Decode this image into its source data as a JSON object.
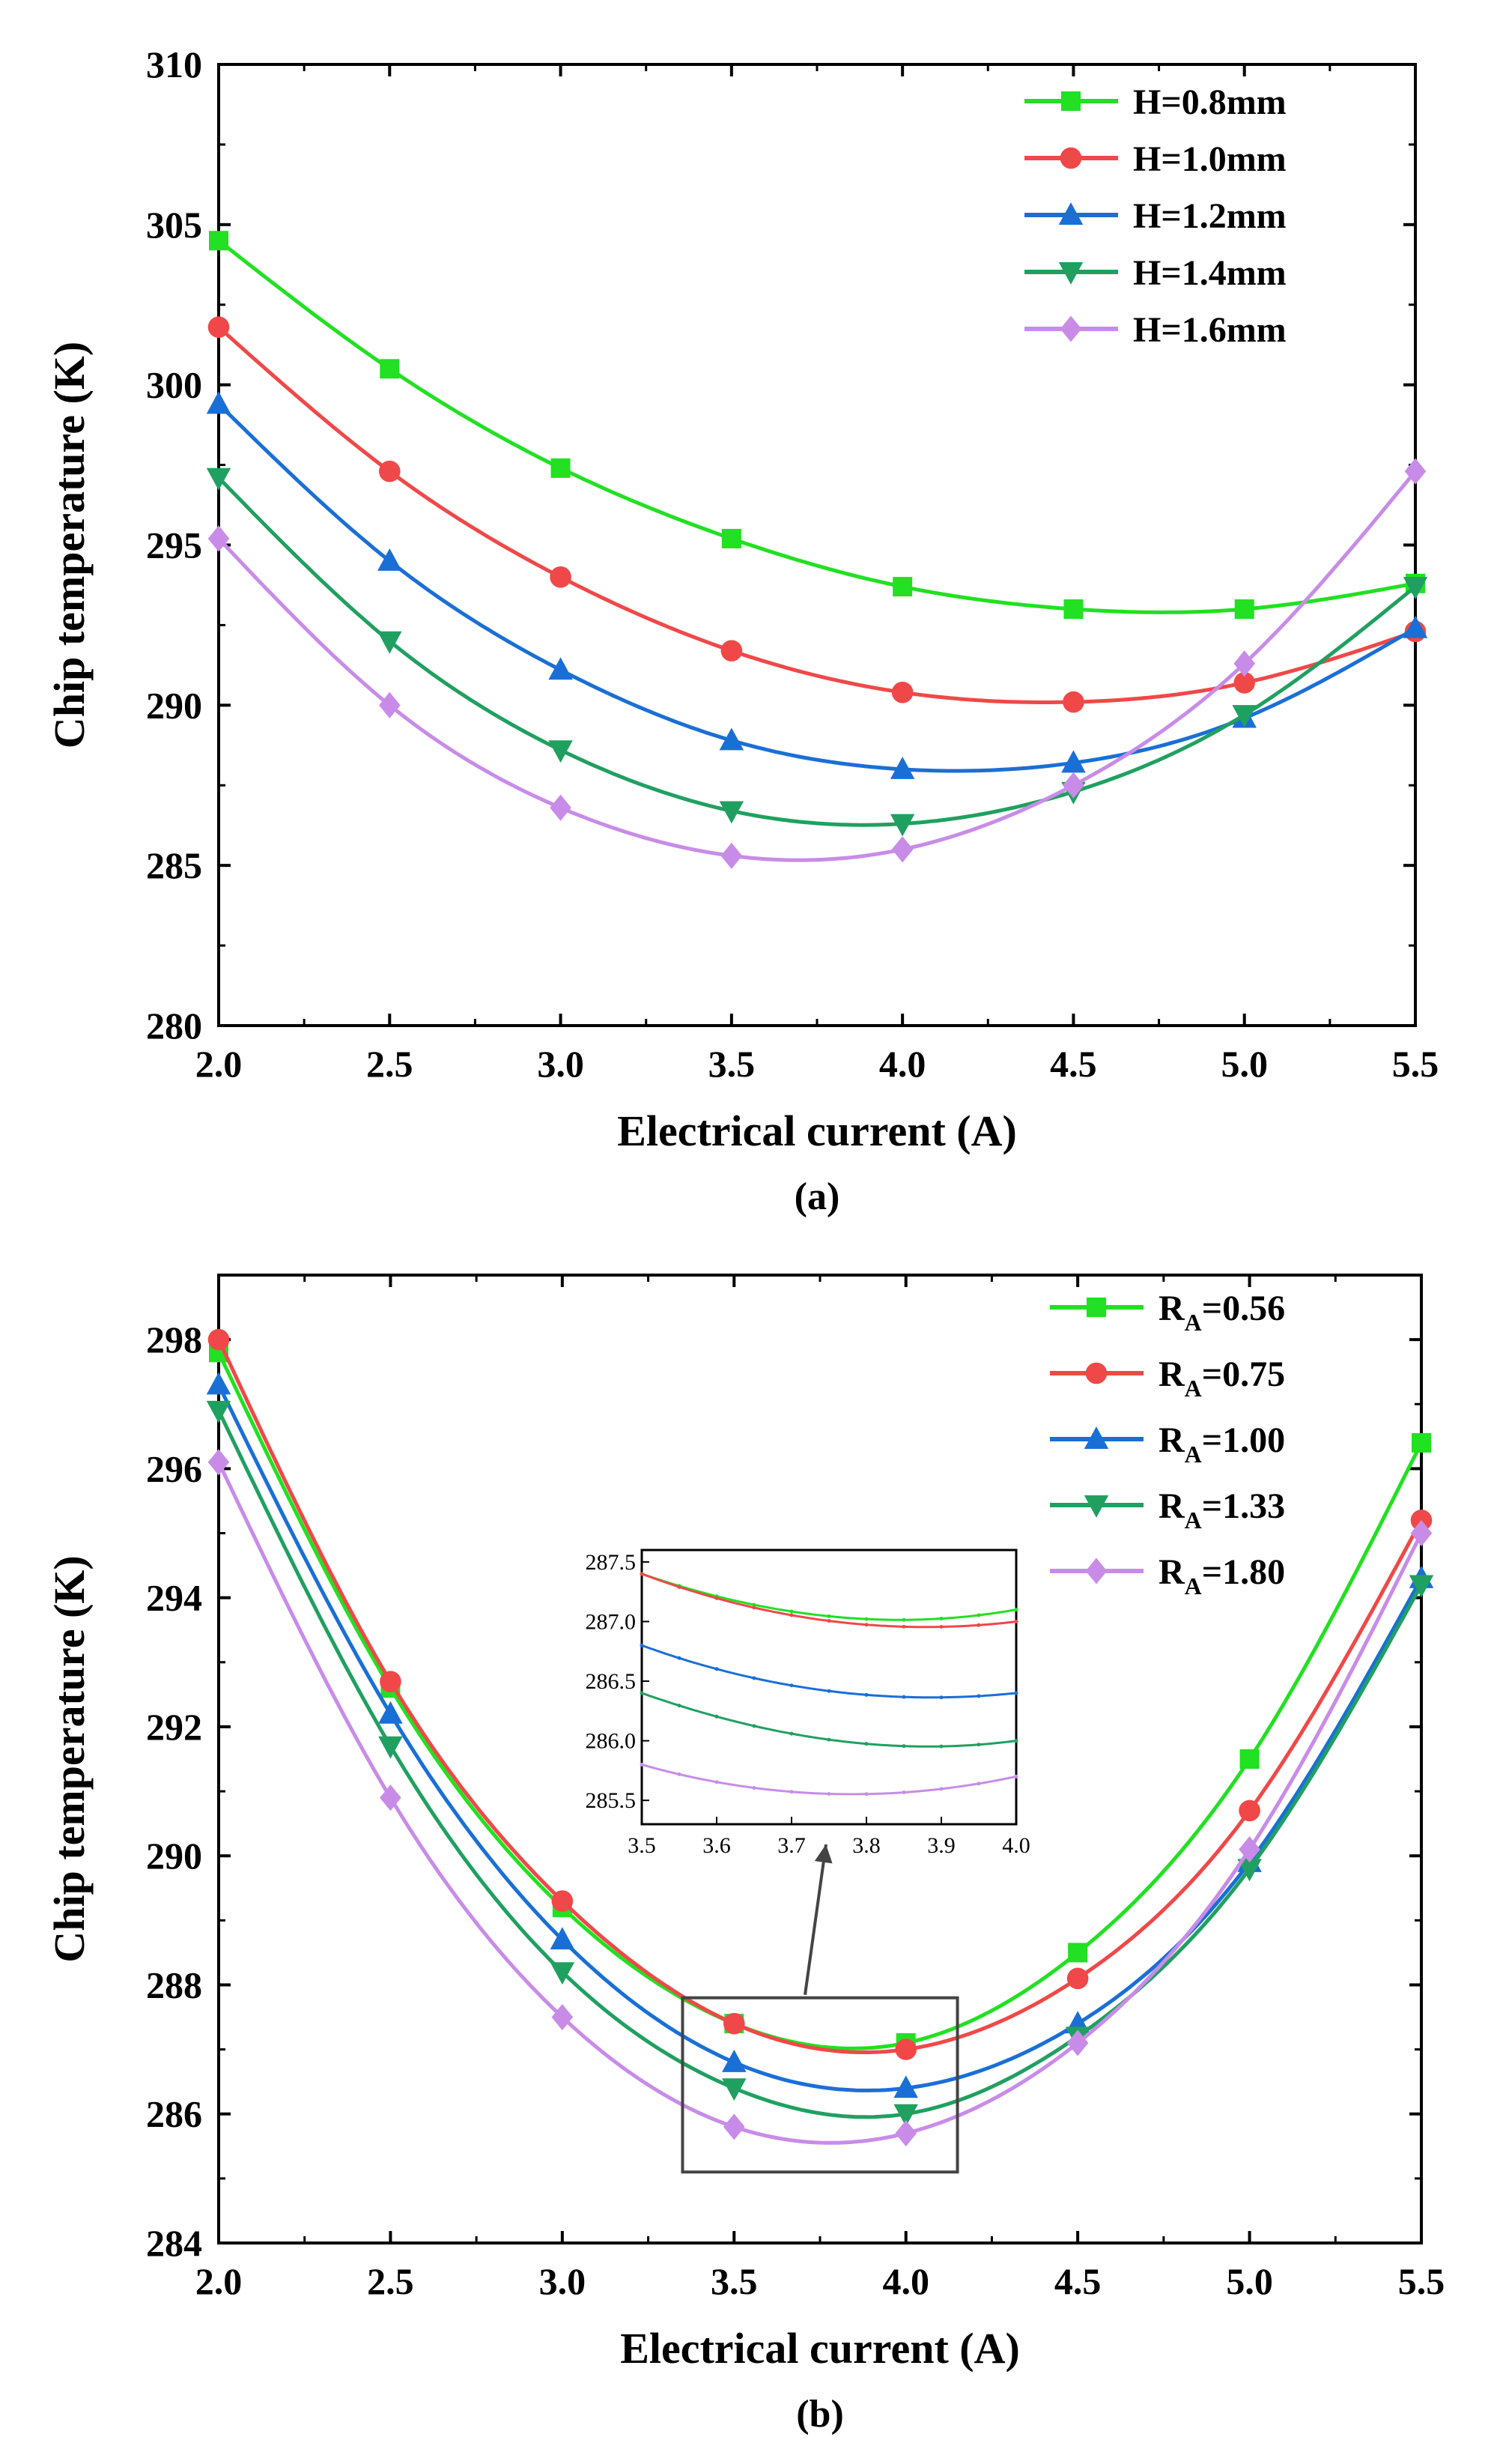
{
  "colors": {
    "green": "#22e022",
    "red": "#f04848",
    "blue": "#1a6fd6",
    "teal": "#20a060",
    "violet": "#c88ce8",
    "frame": "#000000",
    "callout": "#444444"
  },
  "chart_data": [
    {
      "type": "line",
      "panel_label": "(a)",
      "title": "",
      "xlabel": "Electrical current (A)",
      "ylabel": "Chip temperature (K)",
      "xlim": [
        2.0,
        5.5
      ],
      "ylim": [
        280,
        310
      ],
      "xticks": [
        "2.0",
        "2.5",
        "3.0",
        "3.5",
        "4.0",
        "4.5",
        "5.0",
        "5.5"
      ],
      "yticks": [
        "280",
        "285",
        "290",
        "295",
        "300",
        "305",
        "310"
      ],
      "legend_position": "top-right",
      "x": [
        2.0,
        2.5,
        3.0,
        3.5,
        4.0,
        4.5,
        5.0,
        5.5
      ],
      "series": [
        {
          "name": "H=0.8mm",
          "color_key": "green",
          "marker": "square",
          "values": [
            304.5,
            300.5,
            297.4,
            295.2,
            293.7,
            293.0,
            293.0,
            293.8
          ]
        },
        {
          "name": "H=1.0mm",
          "color_key": "red",
          "marker": "circle",
          "values": [
            301.8,
            297.3,
            294.0,
            291.7,
            290.4,
            290.1,
            290.7,
            292.3
          ]
        },
        {
          "name": "H=1.2mm",
          "color_key": "blue",
          "marker": "triangle-up",
          "values": [
            299.4,
            294.5,
            291.1,
            288.9,
            288.0,
            288.2,
            289.6,
            292.4
          ]
        },
        {
          "name": "H=1.4mm",
          "color_key": "teal",
          "marker": "triangle-down",
          "values": [
            297.1,
            292.0,
            288.6,
            286.7,
            286.3,
            287.3,
            289.7,
            293.7
          ]
        },
        {
          "name": "H=1.6mm",
          "color_key": "violet",
          "marker": "diamond",
          "values": [
            295.2,
            290.0,
            286.8,
            285.3,
            285.5,
            287.5,
            291.3,
            297.3
          ]
        }
      ]
    },
    {
      "type": "line",
      "panel_label": "(b)",
      "title": "",
      "xlabel": "Electrical current (A)",
      "ylabel": "Chip temperature (K)",
      "xlim": [
        2.0,
        5.5
      ],
      "ylim": [
        284,
        299
      ],
      "xticks": [
        "2.0",
        "2.5",
        "3.0",
        "3.5",
        "4.0",
        "4.5",
        "5.0",
        "5.5"
      ],
      "yticks": [
        "284",
        "286",
        "288",
        "290",
        "292",
        "294",
        "296",
        "298"
      ],
      "legend_position": "top-right",
      "x": [
        2.0,
        2.5,
        3.0,
        3.5,
        4.0,
        4.5,
        5.0,
        5.5
      ],
      "series": [
        {
          "name": "RA=0.56",
          "legend_main": "R",
          "legend_sub": "A",
          "legend_rest": "=0.56",
          "color_key": "green",
          "marker": "square",
          "values": [
            297.8,
            292.6,
            289.2,
            287.4,
            287.1,
            288.5,
            291.5,
            296.4
          ]
        },
        {
          "name": "RA=0.75",
          "legend_main": "R",
          "legend_sub": "A",
          "legend_rest": "=0.75",
          "color_key": "red",
          "marker": "circle",
          "values": [
            298.0,
            292.7,
            289.3,
            287.4,
            287.0,
            288.1,
            290.7,
            295.2
          ]
        },
        {
          "name": "RA=1.00",
          "legend_main": "R",
          "legend_sub": "A",
          "legend_rest": "=1.00",
          "color_key": "blue",
          "marker": "triangle-up",
          "values": [
            297.3,
            292.2,
            288.7,
            286.8,
            286.4,
            287.4,
            289.9,
            294.3
          ]
        },
        {
          "name": "RA=1.33",
          "legend_main": "R",
          "legend_sub": "A",
          "legend_rest": "=1.33",
          "color_key": "teal",
          "marker": "triangle-down",
          "values": [
            296.9,
            291.7,
            288.2,
            286.4,
            286.0,
            287.2,
            289.8,
            294.2
          ]
        },
        {
          "name": "RA=1.80",
          "legend_main": "R",
          "legend_sub": "A",
          "legend_rest": "=1.80",
          "color_key": "violet",
          "marker": "diamond",
          "values": [
            296.1,
            290.9,
            287.5,
            285.8,
            285.7,
            287.1,
            290.1,
            295.0
          ]
        }
      ],
      "inset": {
        "xlim": [
          3.5,
          4.0
        ],
        "ylim": [
          285.3,
          287.6
        ],
        "xticks": [
          "3.5",
          "3.6",
          "3.7",
          "3.8",
          "3.9",
          "4.0"
        ],
        "yticks": [
          "285.5",
          "286.0",
          "286.5",
          "287.0",
          "287.5"
        ],
        "zoom_region": {
          "x": [
            3.35,
            4.15
          ],
          "y": [
            285.1,
            287.8
          ]
        }
      }
    }
  ]
}
